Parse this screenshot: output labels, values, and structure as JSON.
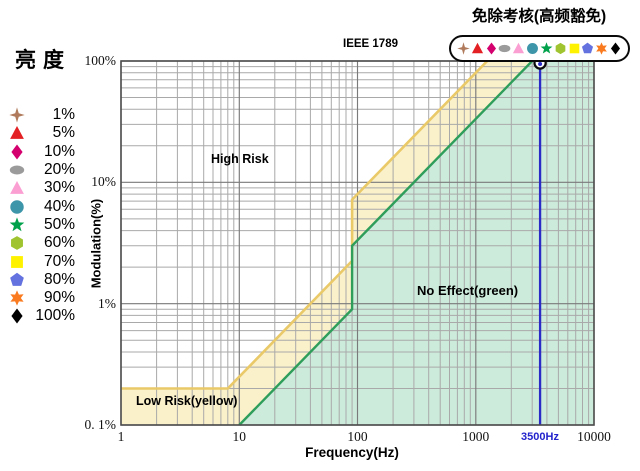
{
  "brightness_legend": {
    "title": "亮度",
    "items": [
      {
        "label": "1%",
        "shape": "star4",
        "color": "#B07B5C"
      },
      {
        "label": "5%",
        "shape": "triangle",
        "color": "#E32124"
      },
      {
        "label": "10%",
        "shape": "diamond",
        "color": "#D4006E"
      },
      {
        "label": "20%",
        "shape": "ellipse",
        "color": "#9B9B9B"
      },
      {
        "label": "30%",
        "shape": "triangle",
        "color": "#FB9FD3"
      },
      {
        "label": "40%",
        "shape": "circle",
        "color": "#3D95A9"
      },
      {
        "label": "50%",
        "shape": "star5",
        "color": "#00A14B"
      },
      {
        "label": "60%",
        "shape": "hexagon",
        "color": "#9FC430"
      },
      {
        "label": "70%",
        "shape": "square",
        "color": "#FFF200"
      },
      {
        "label": "80%",
        "shape": "pentagon",
        "color": "#6472E0"
      },
      {
        "label": "90%",
        "shape": "star6",
        "color": "#F97A1F"
      },
      {
        "label": "100%",
        "shape": "diamond",
        "color": "#000000"
      }
    ]
  },
  "exemption_callout": {
    "label": "免除考核(高频豁免)"
  },
  "chart_data": {
    "type": "area",
    "title": "IEEE 1789",
    "xlabel": "Frequency(Hz)",
    "ylabel": "Modulation(%)",
    "x_scale": "log",
    "y_scale": "log",
    "xlim": [
      1,
      10000
    ],
    "ylim": [
      0.1,
      100
    ],
    "x_ticks": [
      {
        "value": 1,
        "label": "1"
      },
      {
        "value": 10,
        "label": "10"
      },
      {
        "value": 100,
        "label": "100"
      },
      {
        "value": 1000,
        "label": "1000"
      },
      {
        "value": 10000,
        "label": "10000"
      }
    ],
    "y_ticks": [
      {
        "value": 100,
        "label": "100%"
      },
      {
        "value": 10,
        "label": "10%"
      },
      {
        "value": 1,
        "label": "1%"
      },
      {
        "value": 0.1,
        "label": "0. 1%"
      }
    ],
    "regions": [
      {
        "name": "high_risk",
        "label": "High Risk",
        "fill": "#FFFFFF"
      },
      {
        "name": "low_risk",
        "label": "Low Risk(yellow)",
        "fill": "#FAF0CA"
      },
      {
        "name": "no_effect",
        "label": "No Effect(green)",
        "fill": "#CDEBDB"
      }
    ],
    "boundary_lines": [
      {
        "name": "low_risk_boundary",
        "color": "#E9C968",
        "points": [
          [
            1,
            0.2
          ],
          [
            8,
            0.2
          ],
          [
            90,
            2.25
          ],
          [
            90,
            7.2
          ],
          [
            1250,
            100
          ]
        ]
      },
      {
        "name": "no_effect_boundary",
        "color": "#2F9E5B",
        "points": [
          [
            10,
            0.1
          ],
          [
            90,
            0.9
          ],
          [
            90,
            3
          ],
          [
            3000,
            100
          ]
        ]
      }
    ],
    "vertical_marker": {
      "x": 3500,
      "label": "3500Hz",
      "color": "#2B2BC8"
    },
    "grid": {
      "minor_color": "#A9A9A9",
      "major_color": "#7A7A7A"
    },
    "frame_color": "#4D4D4D"
  }
}
